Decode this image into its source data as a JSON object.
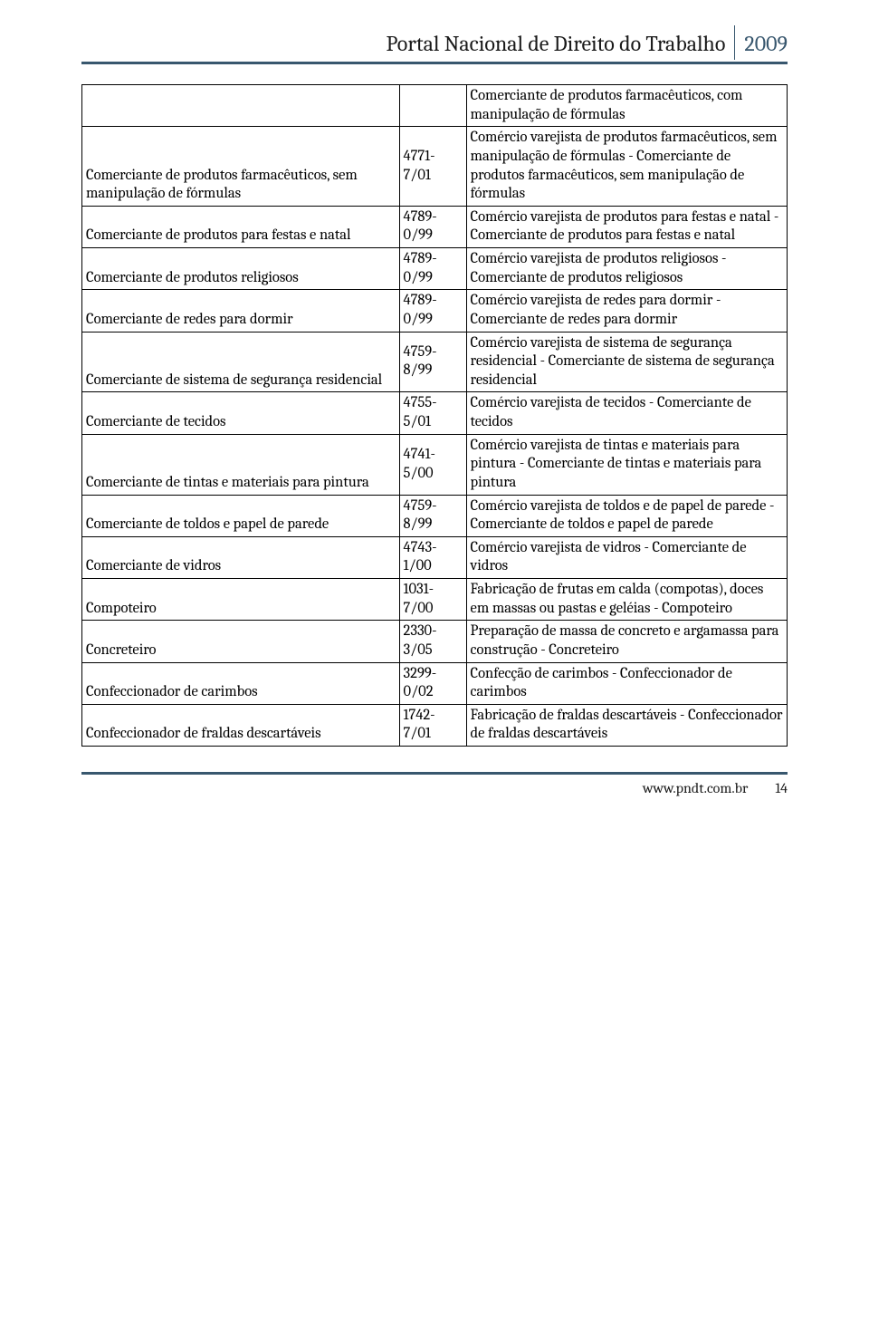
{
  "header": {
    "title": "Portal Nacional de Direito do Trabalho",
    "year": "2009"
  },
  "footer": {
    "url": "www.pndt.com.br",
    "page": "14"
  },
  "colors": {
    "header_rule": "#38576e",
    "year_text": "#38576e",
    "border": "#000000",
    "text": "#000000",
    "background": "#ffffff"
  },
  "typography": {
    "body_family": "Cambria/Georgia serif",
    "body_size_pt": 12,
    "header_size_pt": 18,
    "line_height": 1.25
  },
  "table": {
    "column_widths_pct": [
      45,
      9.5,
      45.5
    ],
    "rows": [
      {
        "col1": "",
        "col2": "",
        "col3": "Comerciante de produtos farmacêuticos, com manipulação de fórmulas"
      },
      {
        "col1": "Comerciante de produtos farmacêuticos, sem manipulação de fórmulas",
        "col2": "4771-7/01",
        "col3": "Comércio varejista de produtos farmacêuticos, sem manipulação de fórmulas - Comerciante de produtos farmacêuticos, sem manipulação de fórmulas"
      },
      {
        "col1": "Comerciante de produtos para festas e natal",
        "col2": "4789-0/99",
        "col3": "Comércio varejista de produtos para festas e natal - Comerciante de produtos para festas e natal"
      },
      {
        "col1": "Comerciante de produtos religiosos",
        "col2": "4789-0/99",
        "col3": "Comércio varejista de produtos religiosos - Comerciante de produtos religiosos"
      },
      {
        "col1": "Comerciante de redes para dormir",
        "col2": "4789-0/99",
        "col3": "Comércio varejista de redes para dormir - Comerciante de redes para dormir"
      },
      {
        "col1": "Comerciante de sistema de segurança residencial",
        "col2": "4759-8/99",
        "col3": "Comércio varejista de sistema de segurança residencial - Comerciante de sistema de segurança residencial"
      },
      {
        "col1": "Comerciante de tecidos",
        "col2": "4755-5/01",
        "col3": "Comércio varejista de tecidos - Comerciante de tecidos"
      },
      {
        "col1": "Comerciante de tintas e materiais para pintura",
        "col2": "4741-5/00",
        "col3": "Comércio varejista de tintas e materiais para pintura - Comerciante de tintas e materiais para pintura"
      },
      {
        "col1": "Comerciante de toldos e papel de parede",
        "col2": "4759-8/99",
        "col3": "Comércio varejista de toldos e de papel de parede - Comerciante de toldos e papel de parede"
      },
      {
        "col1": "Comerciante de vidros",
        "col2": "4743-1/00",
        "col3": "Comércio varejista de vidros - Comerciante de vidros"
      },
      {
        "col1": "Compoteiro",
        "col2": "1031-7/00",
        "col3": "Fabricação de frutas em calda (compotas), doces em massas ou pastas e geléias - Compoteiro"
      },
      {
        "col1": "Concreteiro",
        "col2": "2330-3/05",
        "col3": "Preparação de massa de concreto e argamassa para construção - Concreteiro"
      },
      {
        "col1": "Confeccionador de carimbos",
        "col2": "3299-0/02",
        "col3": "Confecção de carimbos - Confeccionador de carimbos"
      },
      {
        "col1": "Confeccionador de fraldas descartáveis",
        "col2": "1742-7/01",
        "col3": "Fabricação de fraldas descartáveis - Confeccionador de fraldas descartáveis"
      }
    ]
  }
}
